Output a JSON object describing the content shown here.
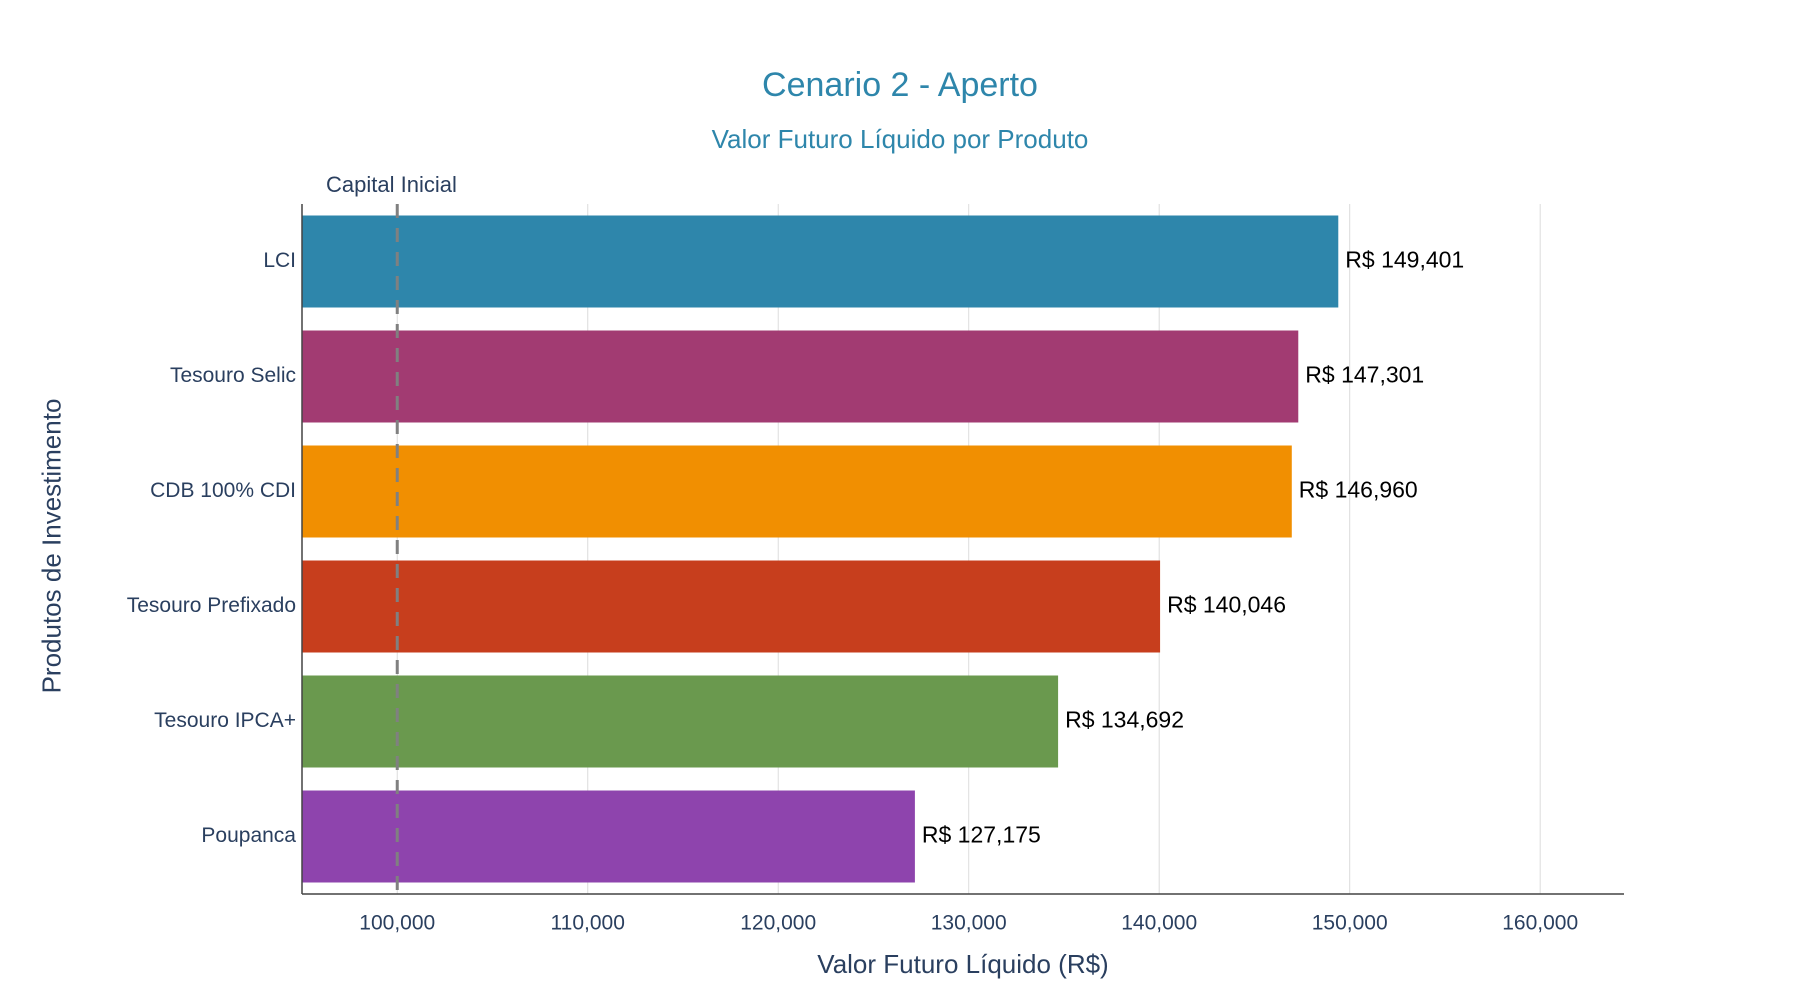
{
  "chart_data": {
    "type": "bar",
    "orientation": "horizontal",
    "title": "Cenario 2 - Aperto",
    "subtitle": "Valor Futuro Líquido por Produto",
    "xlabel": "Valor Futuro Líquido (R$)",
    "ylabel": "Produtos de Investimento",
    "xlim": [
      95000,
      164400
    ],
    "x_ticks": [
      100000,
      110000,
      120000,
      130000,
      140000,
      150000,
      160000
    ],
    "x_tick_labels": [
      "100,000",
      "110,000",
      "120,000",
      "130,000",
      "140,000",
      "150,000",
      "160,000"
    ],
    "grid": "vertical",
    "categories": [
      "LCI",
      "Tesouro Selic",
      "CDB 100% CDI",
      "Tesouro Prefixado",
      "Tesouro IPCA+",
      "Poupanca"
    ],
    "values": [
      149401,
      147301,
      146960,
      140046,
      134692,
      127175
    ],
    "value_labels": [
      "R$ 149,401",
      "R$ 147,301",
      "R$ 146,960",
      "R$ 140,046",
      "R$ 134,692",
      "R$ 127,175"
    ],
    "colors": [
      "#2e86ab",
      "#a23b72",
      "#f18f01",
      "#c73e1d",
      "#6a994e",
      "#8e44ad"
    ],
    "reference_line": {
      "value": 100000,
      "label": "Capital Inicial",
      "style": "dashed",
      "color": "#808080"
    }
  }
}
